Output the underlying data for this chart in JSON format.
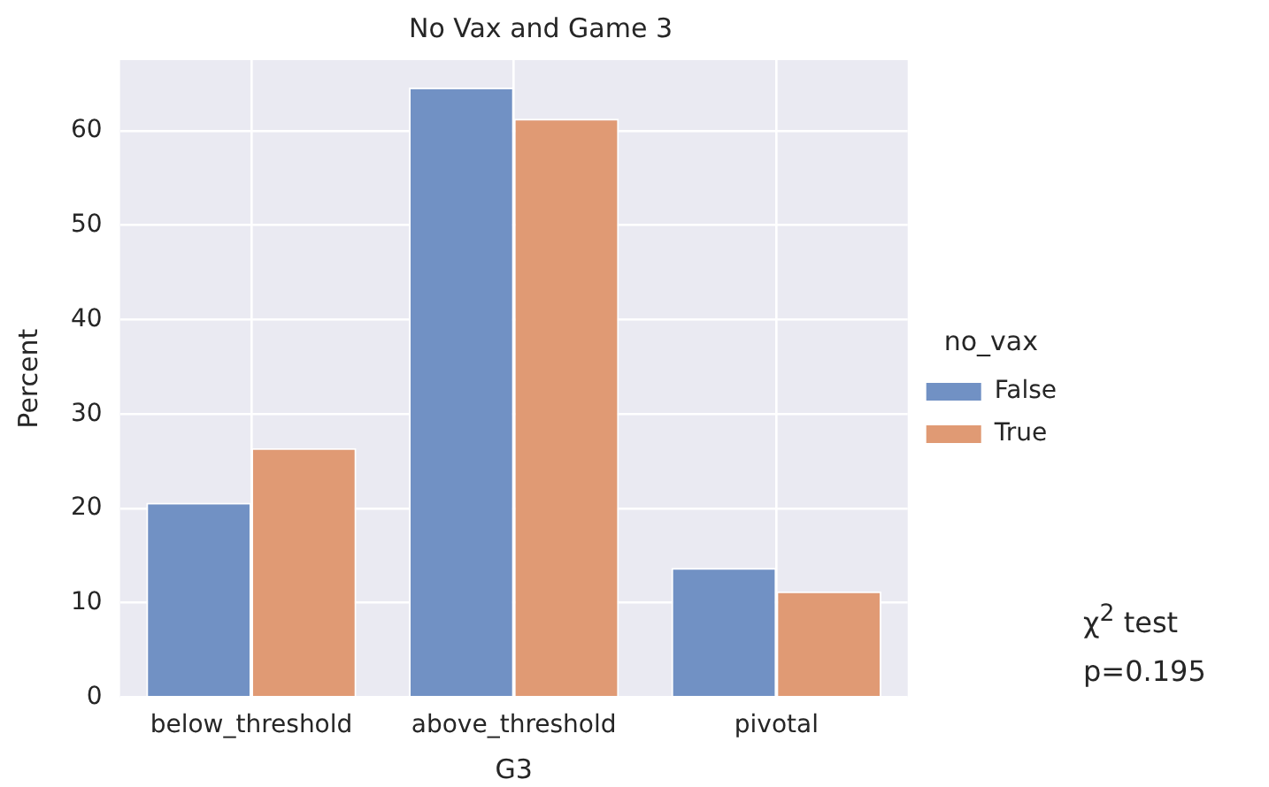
{
  "chart_data": {
    "type": "bar",
    "title": "No Vax and Game 3",
    "xlabel": "G3",
    "ylabel": "Percent",
    "legend_title": "no_vax",
    "categories": [
      "below_threshold",
      "above_threshold",
      "pivotal"
    ],
    "series": [
      {
        "name": "False",
        "color": "#7191c4",
        "values": [
          20.6,
          64.6,
          13.7
        ]
      },
      {
        "name": "True",
        "color": "#e09a74",
        "values": [
          26.4,
          61.3,
          11.2
        ]
      }
    ],
    "ylim": [
      0,
      67.5
    ],
    "yticks": [
      0,
      10,
      20,
      30,
      40,
      50,
      60
    ],
    "grid": true,
    "legend": "right",
    "annotations": [
      "χ$^{2}$ test",
      "p=0.195"
    ]
  }
}
